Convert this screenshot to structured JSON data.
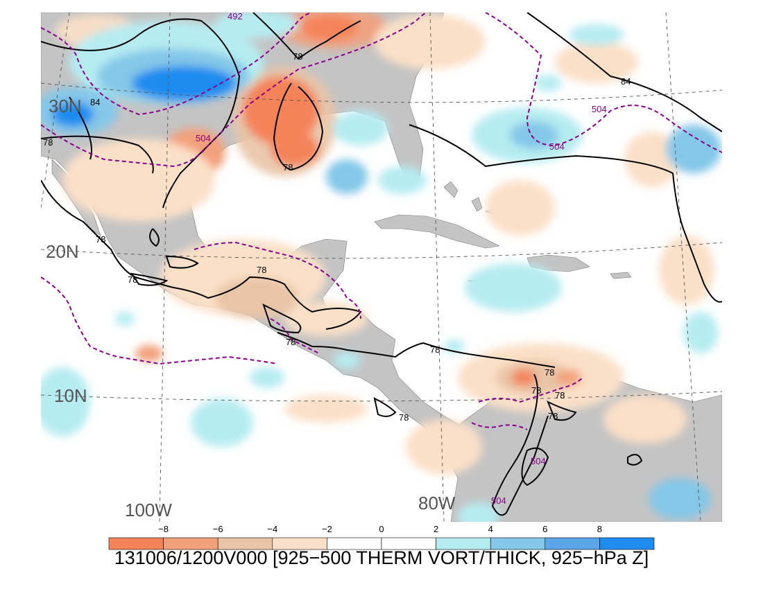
{
  "title": "131006/1200V000 [925−500 THERM VORT/THICK, 925−hPa Z]",
  "colors": {
    "land": "#c4c4c4",
    "ocean": "#ffffff",
    "thickness_contour": "#8b008b",
    "height_contour": "#000000"
  },
  "lat_labels": [
    "30N",
    "20N",
    "10N"
  ],
  "lon_labels": [
    "100W",
    "80W"
  ],
  "height_contour_labels": [
    "84",
    "84",
    "78",
    "78",
    "78",
    "78",
    "78",
    "78",
    "78",
    "78",
    "78",
    "78",
    "78",
    "78",
    "78"
  ],
  "thickness_contour_labels": [
    "492",
    "504",
    "504",
    "504",
    "504",
    "504"
  ],
  "colorbar": {
    "ticks": [
      "−8",
      "−6",
      "−4",
      "−2",
      "0",
      "2",
      "4",
      "6",
      "8"
    ],
    "colors": [
      "#f4835a",
      "#f2a07a",
      "#e9c4a6",
      "#fbe0c8",
      "#ffffff",
      "#ffffff",
      "#b6ecf1",
      "#84c7e8",
      "#5aa6e6",
      "#1e8cf0"
    ]
  }
}
